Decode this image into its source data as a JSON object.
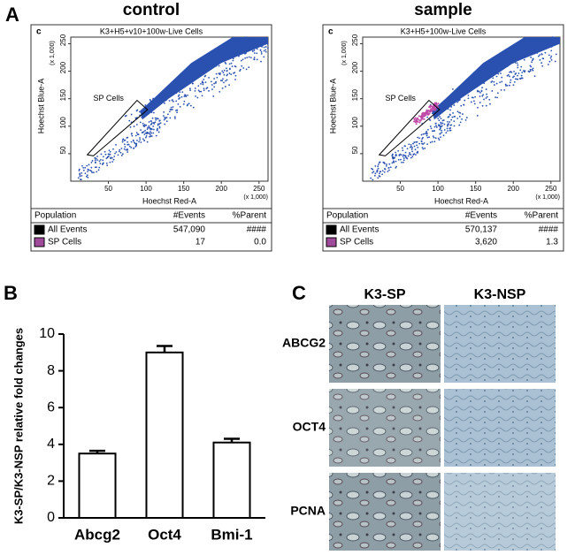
{
  "panel_labels": [
    "A",
    "B",
    "C"
  ],
  "panel_a": {
    "plots": [
      {
        "heading": "control",
        "title": "K3+H5+v10+100w-Live Cells",
        "gate_label": "SP Cells",
        "y_label": "Hoechst Blue-A",
        "x_label": "Hoechst Red-A",
        "y_scale_note": "(x 1,000)",
        "x_scale_note": "(x 1,000)",
        "xlim": [
          0,
          262
        ],
        "ylim": [
          0,
          262
        ],
        "xticks": [
          50,
          100,
          150,
          200,
          250
        ],
        "yticks": [
          50,
          100,
          150,
          200,
          250
        ],
        "table": {
          "header": [
            "Population",
            "#Events",
            "%Parent"
          ],
          "rows": [
            [
              "All Events",
              "547,090",
              "####"
            ],
            [
              "SP Cells",
              "17",
              "0.0"
            ]
          ]
        }
      },
      {
        "heading": "sample",
        "title": "K3+H5+100w-Live Cells",
        "gate_label": "SP Cells",
        "y_label": "Hoechst Blue-A",
        "x_label": "Hoechst Red-A",
        "y_scale_note": "(x 1,000)",
        "x_scale_note": "(x 1,000)",
        "xlim": [
          0,
          262
        ],
        "ylim": [
          0,
          262
        ],
        "xticks": [
          50,
          100,
          150,
          200,
          250
        ],
        "yticks": [
          50,
          100,
          150,
          200,
          250
        ],
        "table": {
          "header": [
            "Population",
            "#Events",
            "%Parent"
          ],
          "rows": [
            [
              "All Events",
              "570,137",
              "####"
            ],
            [
              "SP Cells",
              "3,620",
              "1.3"
            ]
          ]
        }
      }
    ]
  },
  "chart_data": {
    "type": "bar",
    "y_label": "K3-SP/K3-NSP relative fold changes",
    "categories": [
      "Abcg2",
      "Oct4",
      "Bmi-1"
    ],
    "values": [
      3.5,
      9.0,
      4.1
    ],
    "errors": [
      0.15,
      0.35,
      0.2
    ],
    "color": "#ffffff",
    "ylim": [
      0,
      10
    ],
    "yticks": [
      0,
      2,
      4,
      6,
      8,
      10
    ]
  },
  "panel_c": {
    "columns": [
      "K3-SP",
      "K3-NSP"
    ],
    "rows": [
      "ABCG2",
      "OCT4",
      "PCNA"
    ]
  }
}
